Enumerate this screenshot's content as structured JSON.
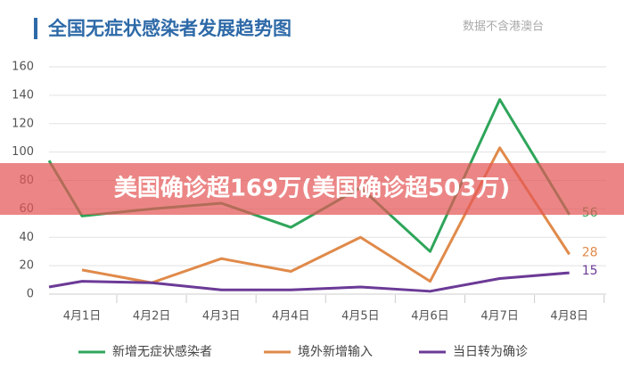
{
  "chart_data": {
    "type": "line",
    "title": "全国无症状感染者发展趋势图",
    "subtitle": "数据不含港澳台",
    "categories": [
      null,
      "4月1日",
      "4月2日",
      "4月3日",
      "4月4日",
      "4月5日",
      "4月6日",
      "4月7日",
      "4月8日"
    ],
    "series": [
      {
        "name": "新增无症状感染者",
        "color": "#2ea55a",
        "values": [
          94,
          55,
          60,
          64,
          47,
          75,
          30,
          137,
          56
        ]
      },
      {
        "name": "境外新增输入",
        "color": "#e08a4a",
        "values": [
          null,
          17,
          8,
          25,
          16,
          40,
          9,
          103,
          28
        ]
      },
      {
        "name": "当日转为确诊",
        "color": "#6b3a96",
        "values": [
          5,
          9,
          8,
          3,
          3,
          5,
          2,
          11,
          15
        ]
      }
    ],
    "ylim": [
      0,
      160
    ],
    "yticks": [
      0,
      20,
      40,
      60,
      80,
      100,
      120,
      140,
      160
    ],
    "grid": true
  },
  "banner": "美国确诊超169万(美国确诊超503万)"
}
